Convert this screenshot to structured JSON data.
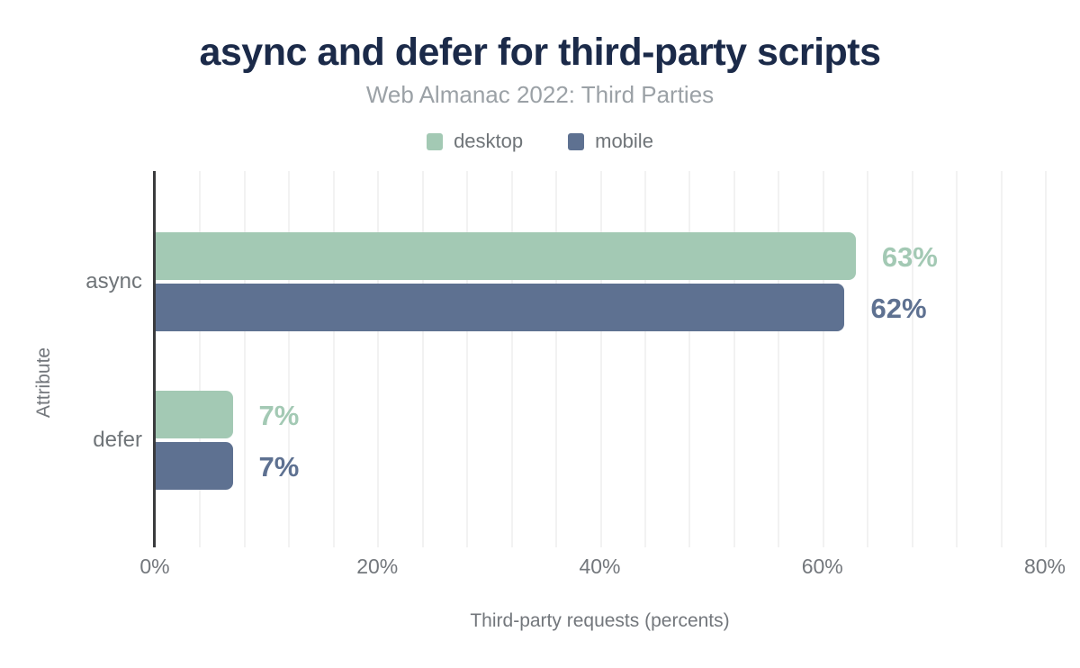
{
  "chart_data": {
    "type": "bar",
    "orientation": "horizontal",
    "title": "async and defer for third-party scripts",
    "subtitle": "Web Almanac 2022: Third Parties",
    "xlabel": "Third-party requests (percents)",
    "ylabel": "Attribute",
    "categories": [
      "async",
      "defer"
    ],
    "series": [
      {
        "name": "desktop",
        "color": "#a3c9b4",
        "values": [
          63,
          7
        ],
        "value_labels": [
          "63%",
          "7%"
        ]
      },
      {
        "name": "mobile",
        "color": "#5e7191",
        "values": [
          62,
          7
        ],
        "value_labels": [
          "62%",
          "7%"
        ]
      }
    ],
    "xlim": [
      0,
      80
    ],
    "x_ticks": [
      {
        "value": 0,
        "label": "0%"
      },
      {
        "value": 20,
        "label": "20%"
      },
      {
        "value": 40,
        "label": "40%"
      },
      {
        "value": 60,
        "label": "60%"
      },
      {
        "value": 80,
        "label": "80%"
      }
    ],
    "grid": {
      "show": true,
      "minor_step_pct": 4,
      "color": "#f2f2f2"
    },
    "legend_position": "top",
    "colors": {
      "title_text": "#1b2a49",
      "subtitle_text": "#9ba1a6",
      "axis_text": "#73777c",
      "axis_line": "#3a3b3d",
      "background": "#ffffff"
    }
  }
}
